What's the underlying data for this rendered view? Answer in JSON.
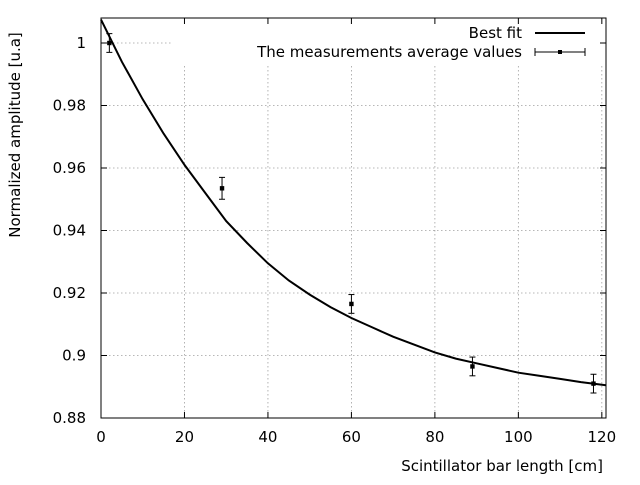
{
  "chart_data": {
    "type": "scatter",
    "title": "",
    "xlabel": "Scintillator bar length [cm]",
    "ylabel": "Normalized amplitude [u.a]",
    "xlim": [
      0,
      121
    ],
    "ylim": [
      0.88,
      1.008
    ],
    "grid": true,
    "legend_position": "top-right",
    "x_ticks": [
      0,
      20,
      40,
      60,
      80,
      100,
      120
    ],
    "y_ticks": [
      0.88,
      0.9,
      0.92,
      0.94,
      0.96,
      0.98,
      1
    ],
    "x_tick_labels": [
      "0",
      "20",
      "40",
      "60",
      "80",
      "100",
      "120"
    ],
    "y_tick_labels": [
      "0.88",
      "0.9",
      "0.92",
      "0.94",
      "0.96",
      "0.98",
      "1"
    ],
    "series": [
      {
        "name": "Best fit",
        "style": "line",
        "color": "#000000",
        "x": [
          0,
          5,
          10,
          15,
          20,
          25,
          30,
          35,
          40,
          45,
          50,
          55,
          60,
          65,
          70,
          75,
          80,
          85,
          90,
          95,
          100,
          105,
          110,
          115,
          121
        ],
        "y": [
          1.0075,
          0.994,
          0.982,
          0.971,
          0.961,
          0.952,
          0.943,
          0.936,
          0.9295,
          0.924,
          0.9195,
          0.9155,
          0.912,
          0.909,
          0.906,
          0.9035,
          0.901,
          0.899,
          0.8975,
          0.896,
          0.8945,
          0.8935,
          0.8925,
          0.8915,
          0.8905
        ]
      },
      {
        "name": "The measurements average values",
        "style": "points_with_errorbars",
        "color": "#000000",
        "x": [
          2,
          29,
          60,
          89,
          118
        ],
        "y": [
          1.0,
          0.9535,
          0.9165,
          0.8965,
          0.891
        ],
        "yerr": [
          0.003,
          0.0035,
          0.003,
          0.003,
          0.003
        ]
      }
    ]
  }
}
